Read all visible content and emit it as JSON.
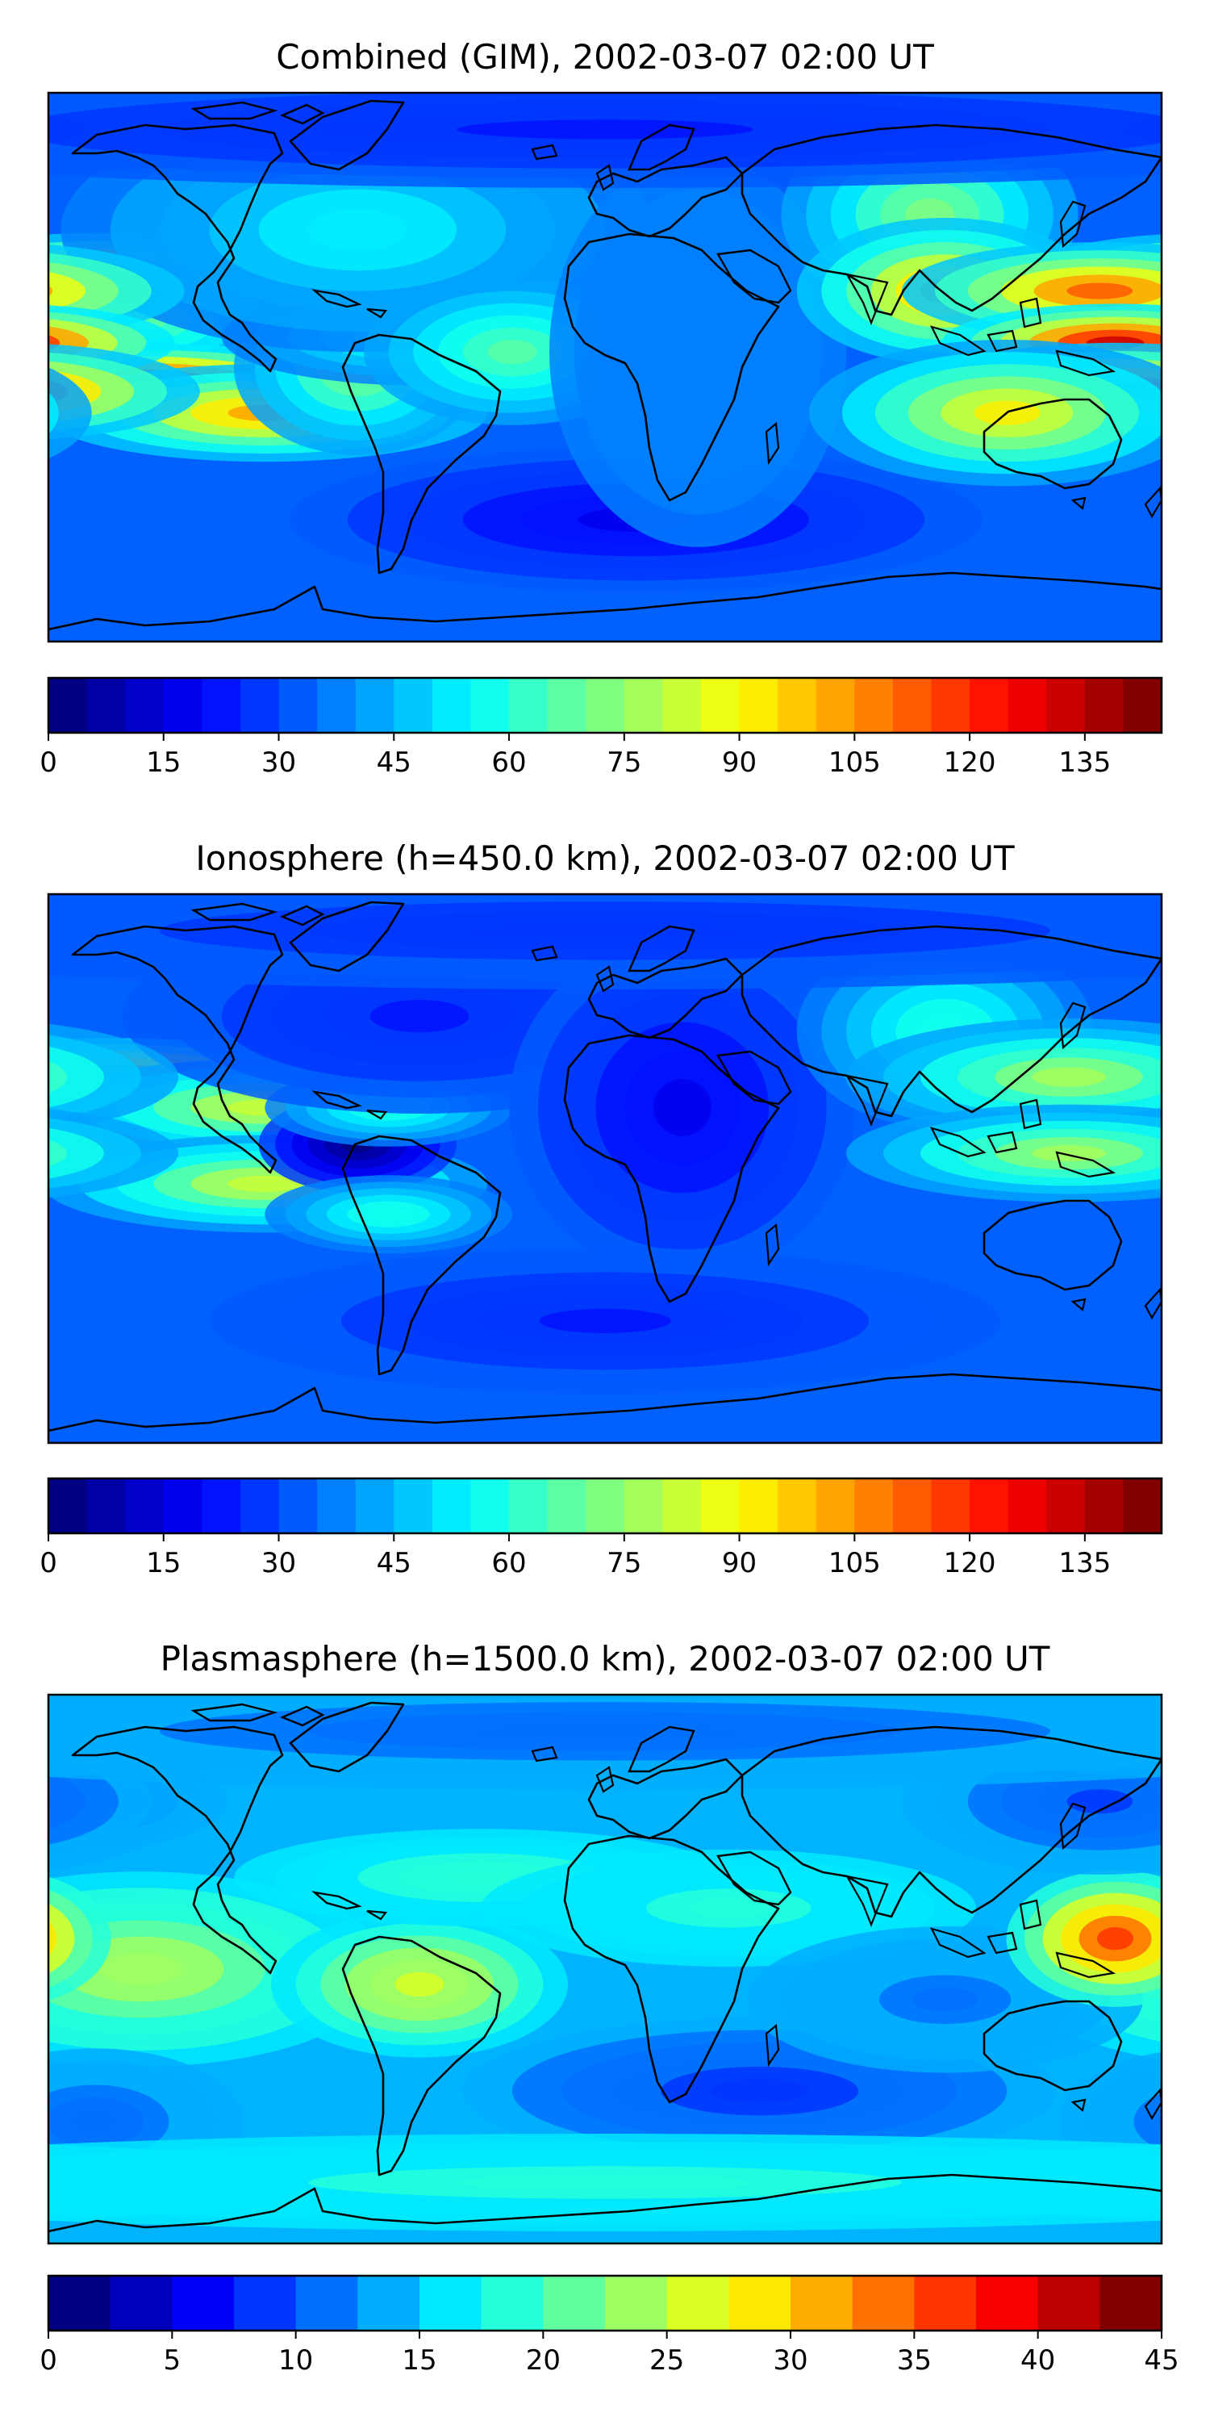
{
  "figure": {
    "panels": [
      {
        "title": "Combined (GIM), 2002-03-07 02:00 UT",
        "colorbar": {
          "min": 0,
          "max": 145,
          "step": 5,
          "ticks": [
            "0",
            "15",
            "30",
            "45",
            "60",
            "75",
            "90",
            "105",
            "120",
            "135"
          ]
        },
        "blobs": [
          {
            "lon": -165,
            "lat": 28,
            "rx": 40,
            "ry": 10,
            "v": 85
          },
          {
            "lon": -160,
            "lat": 8,
            "rx": 45,
            "ry": 8,
            "v": 115
          },
          {
            "lon": -150,
            "lat": 15,
            "rx": 30,
            "ry": 12,
            "v": 35
          },
          {
            "lon": -150,
            "lat": -5,
            "rx": 45,
            "ry": 8,
            "v": 105
          },
          {
            "lon": -110,
            "lat": -15,
            "rx": 45,
            "ry": 10,
            "v": 70
          },
          {
            "lon": -80,
            "lat": 0,
            "rx": 25,
            "ry": 18,
            "v": 40
          },
          {
            "lon": -60,
            "lat": 10,
            "rx": 40,
            "ry": 10,
            "v": 30
          },
          {
            "lon": -80,
            "lat": 45,
            "rx": 60,
            "ry": 25,
            "v": 20
          },
          {
            "lon": -30,
            "lat": 5,
            "rx": 30,
            "ry": 15,
            "v": 35
          },
          {
            "lon": 10,
            "lat": -50,
            "rx": 70,
            "ry": 15,
            "v": -15
          },
          {
            "lon": 30,
            "lat": 5,
            "rx": 30,
            "ry": 40,
            "v": 5
          },
          {
            "lon": 105,
            "lat": 50,
            "rx": 30,
            "ry": 20,
            "v": 40
          },
          {
            "lon": 110,
            "lat": 25,
            "rx": 30,
            "ry": 15,
            "v": 70
          },
          {
            "lon": 160,
            "lat": 25,
            "rx": 40,
            "ry": 10,
            "v": 80
          },
          {
            "lon": 165,
            "lat": 8,
            "rx": 35,
            "ry": 8,
            "v": 100
          },
          {
            "lon": 165,
            "lat": -8,
            "rx": 40,
            "ry": 10,
            "v": 90
          },
          {
            "lon": 130,
            "lat": -15,
            "rx": 40,
            "ry": 15,
            "v": 60
          },
          {
            "lon": 0,
            "lat": 78,
            "rx": 180,
            "ry": 12,
            "v": -10
          }
        ]
      },
      {
        "title": "Ionosphere  (h=450.0 km), 2002-03-07 02:00 UT",
        "colorbar": {
          "min": 0,
          "max": 145,
          "step": 5,
          "ticks": [
            "0",
            "15",
            "30",
            "45",
            "60",
            "75",
            "90",
            "105",
            "120",
            "135"
          ]
        },
        "blobs": [
          {
            "lon": -160,
            "lat": 30,
            "rx": 45,
            "ry": 8,
            "v": 85
          },
          {
            "lon": -160,
            "lat": 5,
            "rx": 45,
            "ry": 8,
            "v": 85
          },
          {
            "lon": -110,
            "lat": 20,
            "rx": 45,
            "ry": 10,
            "v": 50
          },
          {
            "lon": -110,
            "lat": -5,
            "rx": 45,
            "ry": 10,
            "v": 50
          },
          {
            "lon": -80,
            "lat": 8,
            "rx": 20,
            "ry": 10,
            "v": -35
          },
          {
            "lon": -70,
            "lat": 20,
            "rx": 25,
            "ry": 8,
            "v": 25
          },
          {
            "lon": -70,
            "lat": -15,
            "rx": 25,
            "ry": 8,
            "v": 25
          },
          {
            "lon": -60,
            "lat": 50,
            "rx": 60,
            "ry": 20,
            "v": -10
          },
          {
            "lon": 25,
            "lat": 20,
            "rx": 35,
            "ry": 35,
            "v": -15
          },
          {
            "lon": 0,
            "lat": -50,
            "rx": 80,
            "ry": 15,
            "v": -10
          },
          {
            "lon": 110,
            "lat": 45,
            "rx": 30,
            "ry": 20,
            "v": 25
          },
          {
            "lon": 150,
            "lat": 30,
            "rx": 45,
            "ry": 12,
            "v": 45
          },
          {
            "lon": 150,
            "lat": 5,
            "rx": 45,
            "ry": 10,
            "v": 45
          },
          {
            "lon": 0,
            "lat": 78,
            "rx": 180,
            "ry": 12,
            "v": -8
          }
        ]
      },
      {
        "title": "Plasmasphere (h=1500.0 km), 2002-03-07 02:00 UT",
        "colorbar": {
          "min": 0,
          "max": 45,
          "step": 2.5,
          "ticks": [
            "0",
            "5",
            "10",
            "15",
            "20",
            "25",
            "30",
            "35",
            "40",
            "45"
          ]
        },
        "blobs": [
          {
            "lon": -140,
            "lat": 5,
            "rx": 30,
            "ry": 12,
            "v": 28
          },
          {
            "lon": -150,
            "lat": 0,
            "rx": 50,
            "ry": 20,
            "v": 10
          },
          {
            "lon": -60,
            "lat": -5,
            "rx": 30,
            "ry": 15,
            "v": 12
          },
          {
            "lon": -40,
            "lat": 30,
            "rx": 50,
            "ry": 10,
            "v": 5
          },
          {
            "lon": -170,
            "lat": 55,
            "rx": 30,
            "ry": 10,
            "v": -5
          },
          {
            "lon": -165,
            "lat": -50,
            "rx": 30,
            "ry": 15,
            "v": -4
          },
          {
            "lon": 40,
            "lat": 20,
            "rx": 50,
            "ry": 12,
            "v": 4
          },
          {
            "lon": 50,
            "lat": -40,
            "rx": 60,
            "ry": 15,
            "v": -7
          },
          {
            "lon": 110,
            "lat": -10,
            "rx": 40,
            "ry": 15,
            "v": -3
          },
          {
            "lon": 165,
            "lat": 10,
            "rx": 22,
            "ry": 14,
            "v": 22
          },
          {
            "lon": 160,
            "lat": 55,
            "rx": 40,
            "ry": 15,
            "v": -5
          },
          {
            "lon": 0,
            "lat": -70,
            "rx": 180,
            "ry": 10,
            "v": 4
          },
          {
            "lon": 0,
            "lat": 78,
            "rx": 180,
            "ry": 12,
            "v": -4
          }
        ]
      }
    ]
  }
}
